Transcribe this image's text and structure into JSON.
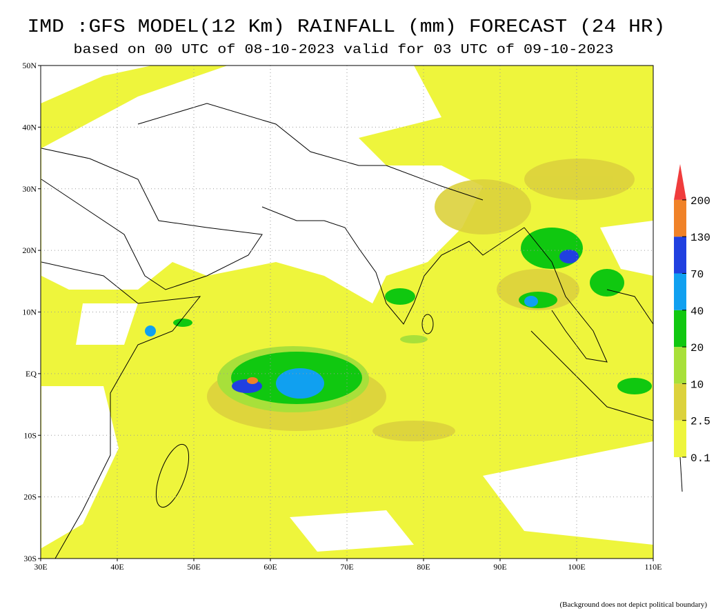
{
  "header": {
    "title": "IMD :GFS MODEL(12 Km) RAINFALL (mm) FORECAST (24 HR)",
    "subtitle": "based on 00 UTC of 08-10-2023 valid for 03 UTC of 09-10-2023"
  },
  "map": {
    "lon_labels": [
      "30E",
      "40E",
      "50E",
      "60E",
      "70E",
      "80E",
      "90E",
      "100E",
      "110E"
    ],
    "lat_labels": [
      "50N",
      "40N",
      "30N",
      "20N",
      "10N",
      "EQ",
      "10S",
      "20S",
      "30S"
    ]
  },
  "legend": {
    "levels": [
      0.1,
      2.5,
      10,
      20,
      40,
      70,
      130,
      200
    ],
    "colors": [
      "#eef53c",
      "#dcd23c",
      "#a8e03a",
      "#10c810",
      "#10a0f0",
      "#2040e0",
      "#f08228",
      "#f03c3c"
    ]
  },
  "footnote": "(Background does not depict political boundary)"
}
